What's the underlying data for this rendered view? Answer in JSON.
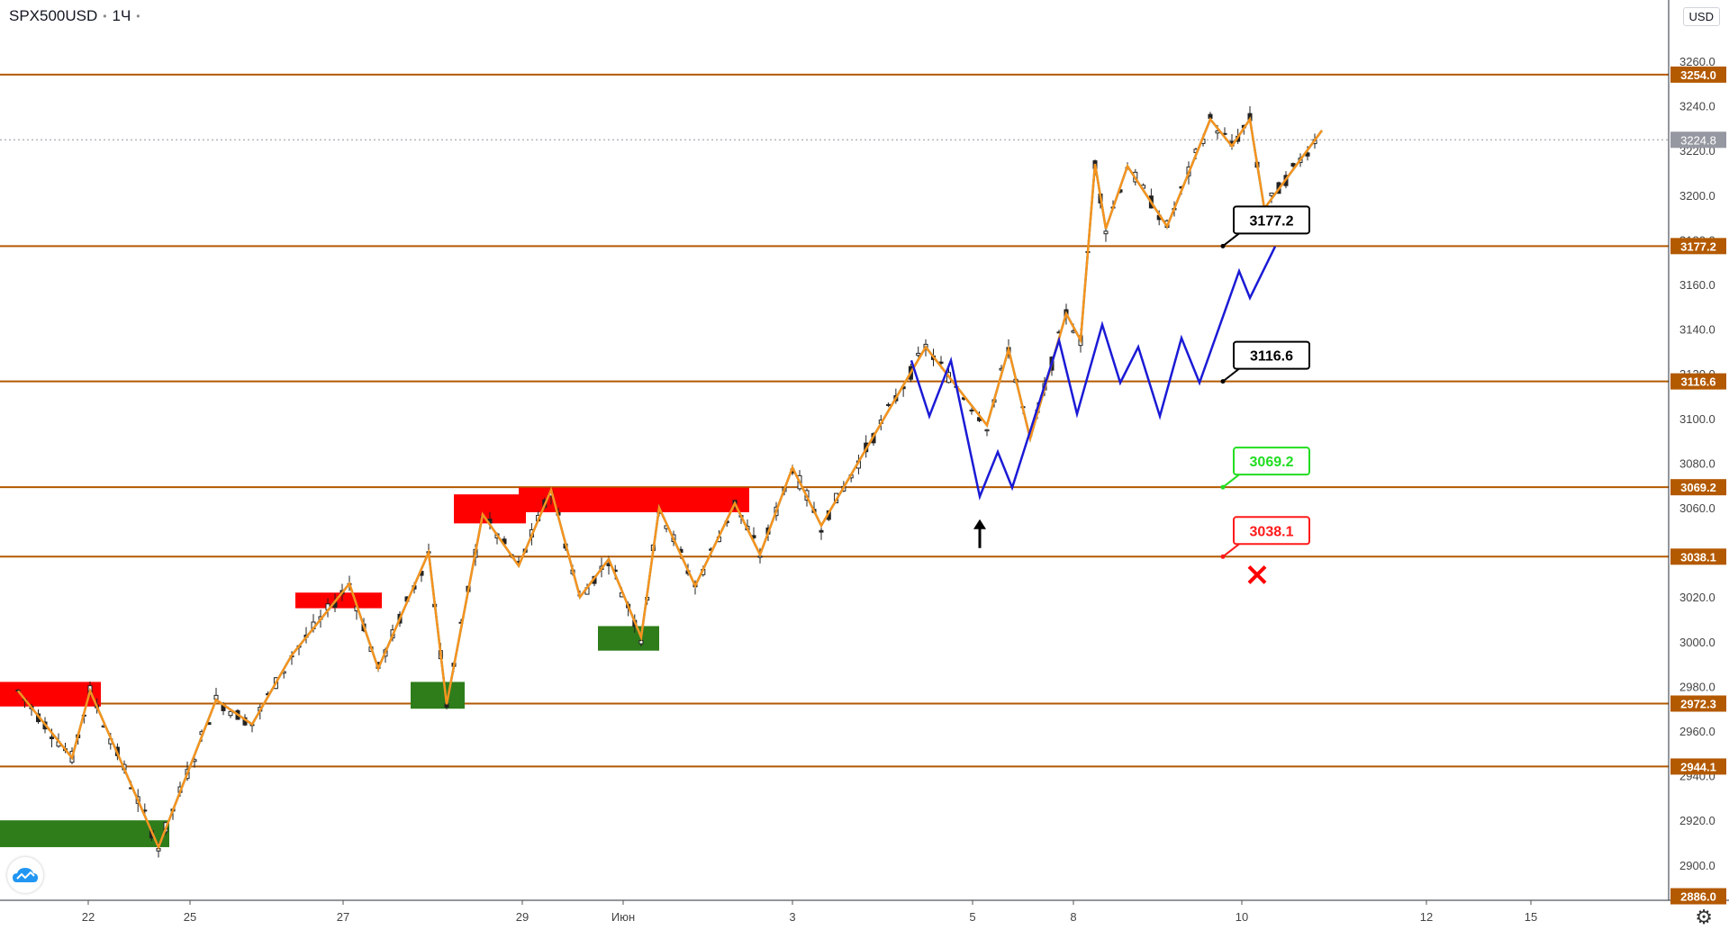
{
  "header": {
    "symbol": "SPX500USD",
    "interval": "1Ч",
    "currency": "USD"
  },
  "icons": {
    "logo": "tradingview-cloud-icon",
    "settings": "gear-icon"
  },
  "chart_data": {
    "type": "candlestick",
    "ylim": [
      2886,
      3272
    ],
    "y_ticks": [
      3260,
      3240,
      3220,
      3200,
      3180,
      3160,
      3140,
      3120,
      3100,
      3080,
      3060,
      3040,
      3020,
      3000,
      2980,
      2960,
      2940,
      2920,
      2900
    ],
    "x_tick_labels": [
      "22",
      "25",
      "27",
      "29",
      "Июн",
      "3",
      "5",
      "8",
      "10",
      "12",
      "15"
    ],
    "current_price": "3224.8",
    "bottom_label": "2886.0",
    "levels": [
      {
        "value": 3254.0,
        "label": "3254.0"
      },
      {
        "value": 3177.2,
        "label": "3177.2"
      },
      {
        "value": 3116.6,
        "label": "3116.6"
      },
      {
        "value": 3069.2,
        "label": "3069.2"
      },
      {
        "value": 3038.1,
        "label": "3038.1"
      },
      {
        "value": 2972.3,
        "label": "2972.3"
      },
      {
        "value": 2944.1,
        "label": "2944.1"
      }
    ],
    "callouts": [
      {
        "value": 3177.2,
        "label": "3177.2",
        "color": "#000000"
      },
      {
        "value": 3116.6,
        "label": "3116.6",
        "color": "#000000"
      },
      {
        "value": 3069.2,
        "label": "3069.2",
        "color": "#22dd22"
      },
      {
        "value": 3038.1,
        "label": "3038.1",
        "color": "#ff1a1a"
      }
    ],
    "supply_zones": [
      {
        "x_from": 0,
        "x_to": 2.3,
        "y_low": 2971,
        "y_high": 2982
      },
      {
        "x_from": 8.2,
        "x_to": 10.1,
        "y_low": 3015,
        "y_high": 3022
      },
      {
        "x_from": 12.6,
        "x_to": 14.1,
        "y_low": 3053,
        "y_high": 3066
      },
      {
        "x_from": 14.4,
        "x_to": 20.3,
        "y_low": 3058,
        "y_high": 3069
      }
    ],
    "demand_zones": [
      {
        "x_from": 0,
        "x_to": 4.2,
        "y_low": 2908,
        "y_high": 2920
      },
      {
        "x_from": 11.4,
        "x_to": 12.4,
        "y_low": 2970,
        "y_high": 2982
      },
      {
        "x_from": 16.6,
        "x_to": 17.8,
        "y_low": 2996,
        "y_high": 3007
      }
    ],
    "zigzag_orange": [
      [
        0,
        2978
      ],
      [
        1.5,
        2948
      ],
      [
        2,
        2978
      ],
      [
        3.9,
        2908
      ],
      [
        5.5,
        2974
      ],
      [
        6.5,
        2963
      ],
      [
        7.6,
        2994
      ],
      [
        9.2,
        3026
      ],
      [
        10,
        2988
      ],
      [
        11.4,
        3040
      ],
      [
        11.9,
        2972
      ],
      [
        12.9,
        3057
      ],
      [
        13.9,
        3034
      ],
      [
        14.8,
        3068
      ],
      [
        15.6,
        3020
      ],
      [
        16.4,
        3037
      ],
      [
        17.3,
        3002
      ],
      [
        17.8,
        3060
      ],
      [
        18.8,
        3025
      ],
      [
        19.9,
        3062
      ],
      [
        20.6,
        3039
      ],
      [
        21.5,
        3078
      ],
      [
        22.3,
        3052
      ],
      [
        25.2,
        3132
      ],
      [
        26.9,
        3097
      ],
      [
        27.5,
        3131
      ],
      [
        28.1,
        3091
      ],
      [
        29.1,
        3147
      ],
      [
        29.5,
        3135
      ],
      [
        29.9,
        3214
      ],
      [
        30.2,
        3185
      ],
      [
        30.8,
        3213
      ],
      [
        31.9,
        3186
      ],
      [
        33.1,
        3234
      ],
      [
        33.7,
        3222
      ],
      [
        34.2,
        3234
      ],
      [
        34.6,
        3194
      ],
      [
        36.2,
        3229
      ]
    ],
    "zigzag_teal": [
      [
        0,
        2978
      ],
      [
        1.5,
        2948
      ],
      [
        2,
        2978
      ],
      [
        3.9,
        2908
      ],
      [
        5.5,
        2974
      ],
      [
        6.5,
        2963
      ],
      [
        7.6,
        2994
      ],
      [
        9.2,
        3026
      ],
      [
        10,
        2988
      ],
      [
        11.4,
        3040
      ],
      [
        11.9,
        2972
      ],
      [
        12.9,
        3057
      ],
      [
        13.9,
        3034
      ],
      [
        14.8,
        3068
      ],
      [
        15.6,
        3020
      ],
      [
        16.4,
        3037
      ],
      [
        17.3,
        3002
      ],
      [
        17.8,
        3060
      ],
      [
        18.8,
        3025
      ],
      [
        19.9,
        3062
      ],
      [
        20.6,
        3039
      ],
      [
        21.5,
        3078
      ],
      [
        22.3,
        3052
      ],
      [
        25.2,
        3132
      ],
      [
        26.9,
        3097
      ],
      [
        27.5,
        3131
      ],
      [
        28.1,
        3091
      ],
      [
        29.1,
        3147
      ],
      [
        29.5,
        3135
      ],
      [
        29.9,
        3214
      ],
      [
        30.2,
        3185
      ],
      [
        30.8,
        3213
      ],
      [
        31.9,
        3186
      ],
      [
        33.1,
        3234
      ],
      [
        33.7,
        3222
      ],
      [
        34.2,
        3234
      ],
      [
        34.6,
        3194
      ],
      [
        36.2,
        3229
      ]
    ],
    "projection_blue": [
      [
        24.8,
        3126
      ],
      [
        25.3,
        3101
      ],
      [
        25.9,
        3126
      ],
      [
        26.7,
        3065
      ],
      [
        27.2,
        3085
      ],
      [
        27.6,
        3069
      ],
      [
        28.9,
        3135
      ],
      [
        29.4,
        3102
      ],
      [
        30.1,
        3142
      ],
      [
        30.6,
        3116
      ],
      [
        31.1,
        3132
      ],
      [
        31.7,
        3101
      ],
      [
        32.3,
        3136
      ],
      [
        32.8,
        3116
      ],
      [
        33.9,
        3166
      ],
      [
        34.2,
        3154
      ],
      [
        34.9,
        3177
      ]
    ],
    "arrow_up": {
      "x": 26.7,
      "y": 3048
    },
    "cross_mark": {
      "x": 34.4,
      "y": 3030
    }
  }
}
